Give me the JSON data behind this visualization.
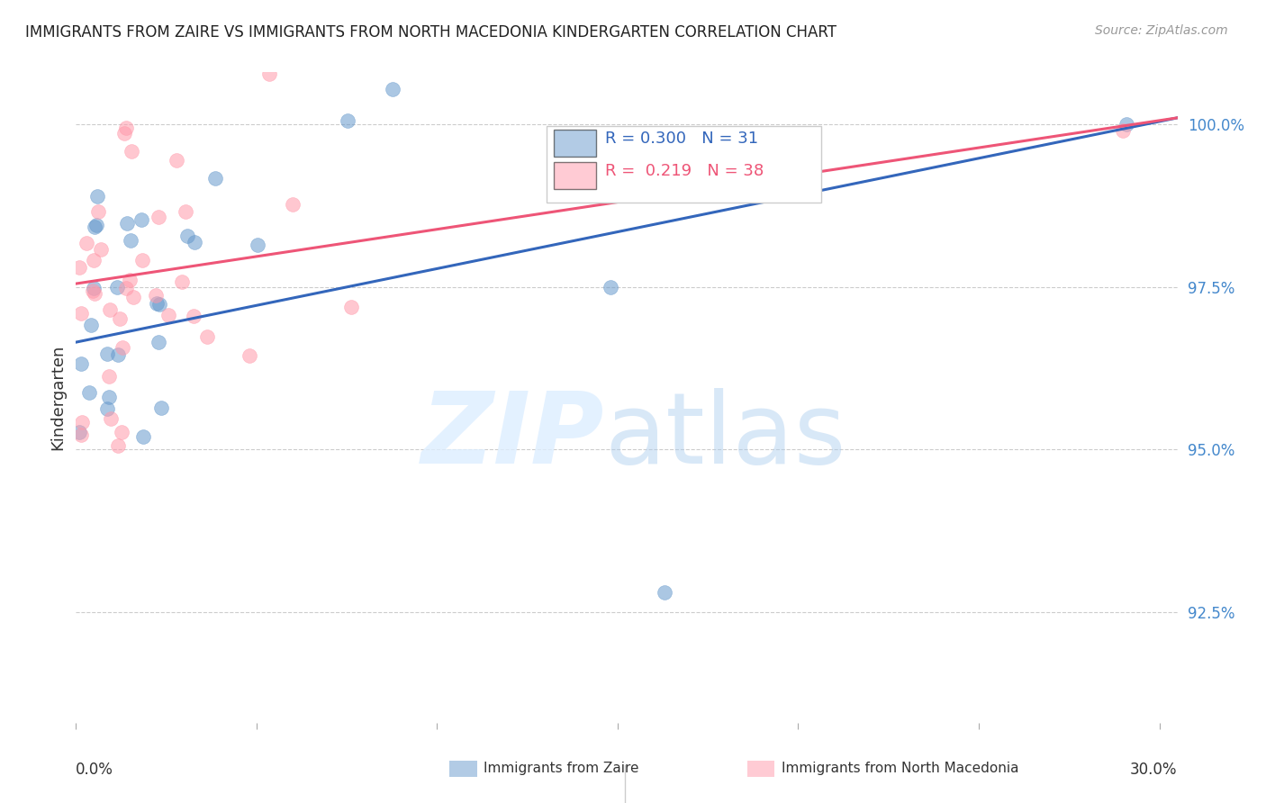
{
  "title": "IMMIGRANTS FROM ZAIRE VS IMMIGRANTS FROM NORTH MACEDONIA KINDERGARTEN CORRELATION CHART",
  "source": "Source: ZipAtlas.com",
  "ylabel": "Kindergarten",
  "ytick_labels": [
    "100.0%",
    "97.5%",
    "95.0%",
    "92.5%"
  ],
  "ytick_values": [
    1.0,
    0.975,
    0.95,
    0.925
  ],
  "xlim": [
    0.0,
    0.305
  ],
  "ylim": [
    0.908,
    1.008
  ],
  "legend_blue_r": "0.300",
  "legend_blue_n": "31",
  "legend_pink_r": "0.219",
  "legend_pink_n": "38",
  "legend_blue_label": "Immigrants from Zaire",
  "legend_pink_label": "Immigrants from North Macedonia",
  "blue_color": "#6699CC",
  "pink_color": "#FF99AA",
  "blue_line_color": "#3366BB",
  "pink_line_color": "#EE5577",
  "blue_trend_x": [
    0.0,
    0.305
  ],
  "blue_trend_y": [
    0.9665,
    1.001
  ],
  "pink_trend_x": [
    0.0,
    0.305
  ],
  "pink_trend_y": [
    0.9755,
    1.001
  ]
}
